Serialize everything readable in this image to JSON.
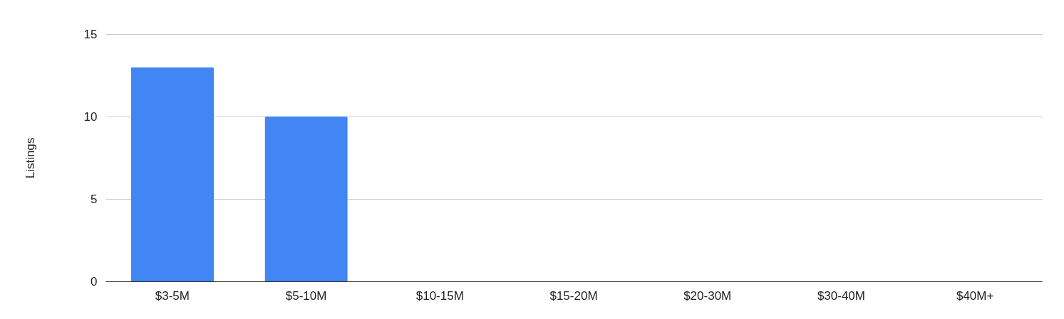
{
  "chart_data": {
    "type": "bar",
    "ylabel": "Listings",
    "categories": [
      "$3-5M",
      "$5-10M",
      "$10-15M",
      "$15-20M",
      "$20-30M",
      "$30-40M",
      "$40M+"
    ],
    "values": [
      13,
      10,
      0,
      0,
      0,
      0,
      0
    ],
    "color": "#4285f4",
    "ylim": [
      0,
      15
    ],
    "yticks": [
      0,
      5,
      10,
      15
    ],
    "grid": "y"
  }
}
